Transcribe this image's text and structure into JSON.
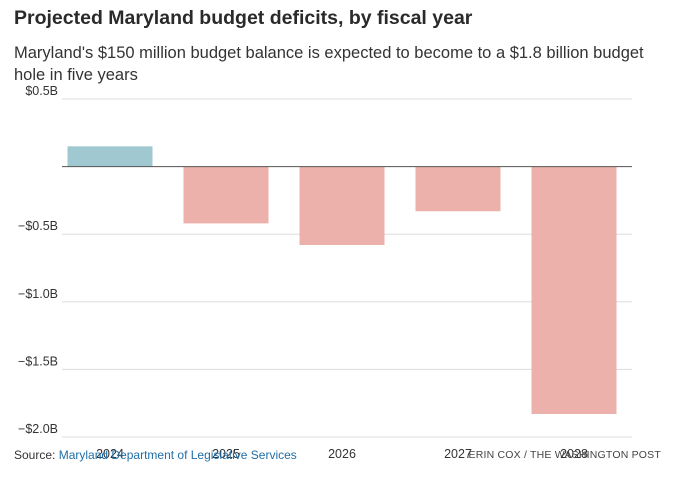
{
  "header": {
    "title": "Projected Maryland budget deficits, by fiscal year",
    "subtitle": "Maryland's $150 million budget balance is expected to become to a $1.8 billion budget hole in five years"
  },
  "footer": {
    "source_prefix": "Source:",
    "source_link": "Maryland Department of Legislative Services",
    "credit": "ERIN COX / THE WASHINGTON POST"
  },
  "colors": {
    "positive": "#9fc8d0",
    "negative": "#ebb1aa",
    "grid": "#dddddd",
    "baseline": "#555555",
    "link": "#1f6fa8"
  },
  "chart_data": {
    "type": "bar",
    "title": "Projected Maryland budget deficits, by fiscal year",
    "categories": [
      "2024",
      "2025",
      "2026",
      "2027",
      "2028"
    ],
    "values": [
      0.15,
      -0.42,
      -0.58,
      -0.33,
      -1.83
    ],
    "unit": "billion USD",
    "ylim": [
      -2.0,
      0.5
    ],
    "yticks": [
      0.5,
      0,
      -0.5,
      -1.0,
      -1.5,
      -2.0
    ],
    "ytick_labels": [
      "$0.5B",
      "",
      "−$0.5B",
      "−$1.0B",
      "−$1.5B",
      "−$2.0B"
    ],
    "grid": true,
    "legend": "none"
  }
}
